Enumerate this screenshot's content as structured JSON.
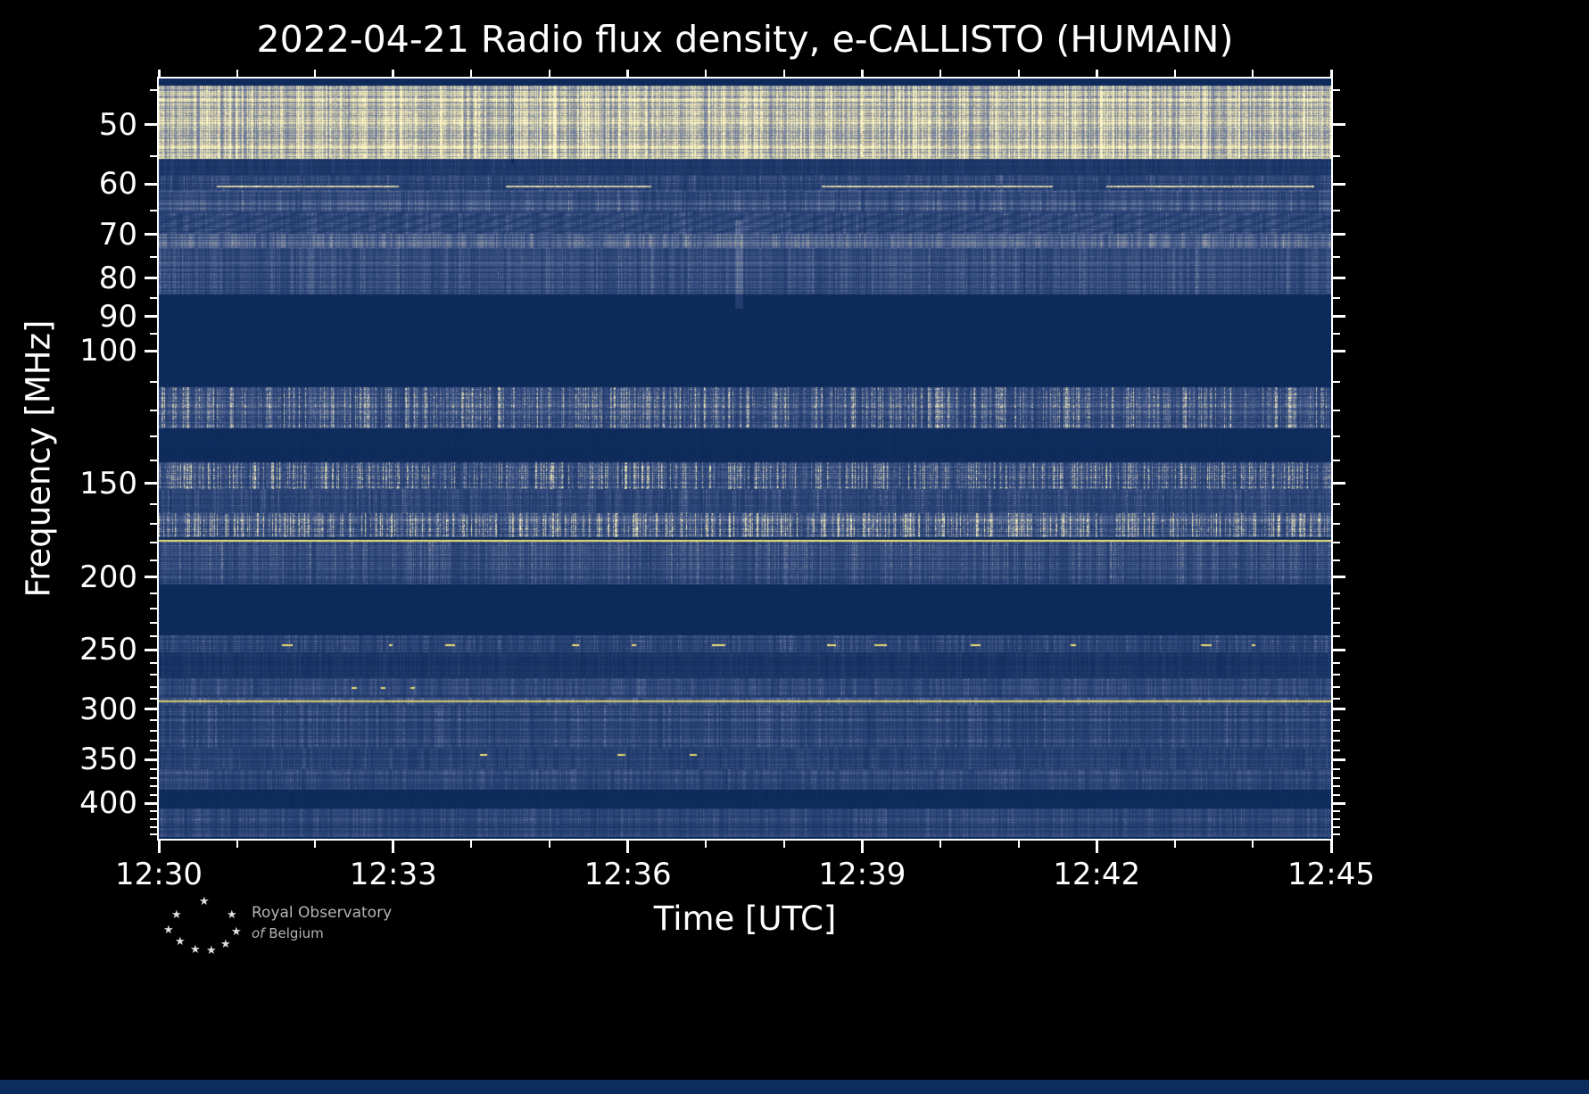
{
  "figure": {
    "title": "2022-04-21 Radio flux density, e-CALLISTO (HUMAIN)",
    "xlabel": "Time [UTC]",
    "ylabel": "Frequency [MHz]"
  },
  "logo": {
    "line1": "Royal Observatory",
    "line2_of": "of",
    "line2_rest": "Belgium",
    "star_glyph": "★"
  },
  "colors": {
    "background": "#000000",
    "axis": "#ffffff",
    "text": "#ffffff",
    "logo_text": "#b5b5b5",
    "bottom_strip": "#0c2c5e"
  },
  "chart_data": {
    "type": "heatmap",
    "subtype": "radio-spectrogram",
    "title": "2022-04-21 Radio flux density, e-CALLISTO (HUMAIN)",
    "xlabel": "Time [UTC]",
    "ylabel": "Frequency [MHz]",
    "observation": {
      "date": "2022-04-21",
      "network": "e-CALLISTO",
      "station": "HUMAIN"
    },
    "x_ticks": [
      "12:30",
      "12:33",
      "12:36",
      "12:39",
      "12:42",
      "12:45"
    ],
    "x_tick_minutes": [
      0,
      3,
      6,
      9,
      12,
      15
    ],
    "x_total_minutes": 15,
    "x_minor_step_minutes": 1,
    "y_scale": "log",
    "y_ticks": [
      50,
      60,
      70,
      80,
      90,
      100,
      150,
      200,
      250,
      300,
      350,
      400
    ],
    "y_minor_ticks": [
      45,
      55,
      65,
      75,
      85,
      95,
      110,
      120,
      130,
      140,
      160,
      170,
      180,
      190,
      210,
      220,
      230,
      240,
      260,
      270,
      280,
      290,
      310,
      320,
      330,
      340,
      360,
      370,
      380,
      390,
      410,
      420,
      430,
      440
    ],
    "freq_range_mhz": [
      43.4,
      446
    ],
    "colormap": {
      "stops": [
        {
          "v": 0,
          "color": "#0b2858"
        },
        {
          "v": 0.3,
          "color": "#2f477a"
        },
        {
          "v": 0.55,
          "color": "#64769d"
        },
        {
          "v": 0.72,
          "color": "#9699a0"
        },
        {
          "v": 0.85,
          "color": "#cfc9a0"
        },
        {
          "v": 1,
          "color": "#fdf6c5"
        }
      ],
      "accent_yellow": "#f6e24e"
    },
    "bands": [
      {
        "f": [
          44.3,
          55.5
        ],
        "base": 0.5,
        "speckle": 0.5,
        "tint": "cream"
      },
      {
        "f": [
          55.5,
          58.3
        ],
        "base": 0.12,
        "speckle": 0.1
      },
      {
        "f": [
          58.3,
          61.2
        ],
        "base": 0.22,
        "speckle": 0.15
      },
      {
        "f": [
          61.2,
          65.4
        ],
        "base": 0.3,
        "speckle": 0.15
      },
      {
        "f": [
          65.4,
          69.8
        ],
        "base": 0.27,
        "speckle": 0.12,
        "pattern": "chevron"
      },
      {
        "f": [
          69.8,
          72.9
        ],
        "base": 0.4,
        "speckle": 0.18
      },
      {
        "f": [
          72.9,
          84.1
        ],
        "base": 0.27,
        "speckle": 0.15
      },
      {
        "f": [
          84.1,
          111.8
        ],
        "base": 0.018,
        "speckle": 0.01
      },
      {
        "f": [
          111.8,
          126.7
        ],
        "base": 0.26,
        "speckle": 0.5
      },
      {
        "f": [
          126.7,
          140.7
        ],
        "base": 0.03,
        "speckle": 0.02
      },
      {
        "f": [
          140.7,
          152.7
        ],
        "base": 0.25,
        "speckle": 0.55
      },
      {
        "f": [
          152.7,
          164.4
        ],
        "base": 0.2,
        "speckle": 0.18
      },
      {
        "f": [
          164.4,
          177.0
        ],
        "base": 0.3,
        "speckle": 0.6
      },
      {
        "f": [
          179.5,
          204.6
        ],
        "base": 0.26,
        "speckle": 0.2
      },
      {
        "f": [
          204.6,
          239.0
        ],
        "base": 0.018,
        "speckle": 0.01
      },
      {
        "f": [
          239.0,
          252.0
        ],
        "base": 0.2,
        "speckle": 0.18
      },
      {
        "f": [
          252.0,
          272.6
        ],
        "base": 0.12,
        "speckle": 0.08
      },
      {
        "f": [
          272.6,
          289.6
        ],
        "base": 0.25,
        "speckle": 0.15
      },
      {
        "f": [
          289.6,
          296.0
        ],
        "base": 0.3,
        "speckle": 0.2
      },
      {
        "f": [
          296.0,
          337.6
        ],
        "base": 0.24,
        "speckle": 0.15
      },
      {
        "f": [
          337.6,
          360.5
        ],
        "base": 0.2,
        "speckle": 0.12
      },
      {
        "f": [
          360.5,
          383.8
        ],
        "base": 0.24,
        "speckle": 0.12
      },
      {
        "f": [
          383.8,
          406.0
        ],
        "base": 0.025,
        "speckle": 0.02
      },
      {
        "f": [
          406.0,
          443.8
        ],
        "base": 0.22,
        "speckle": 0.12
      }
    ],
    "features": [
      {
        "name": "carrier-60MHz",
        "freq": 60.3,
        "type": "segments",
        "brightness": 0.92,
        "thickness": 2,
        "seg_len": [
          90,
          330
        ],
        "gap": [
          60,
          260
        ]
      },
      {
        "name": "carrier-76MHz",
        "freq": 76.2,
        "type": "solid",
        "brightness": 0.45,
        "thickness": 1
      },
      {
        "name": "carrier-178MHz",
        "freq": 178.2,
        "type": "solid",
        "brightness": 1.0,
        "thickness": 2,
        "color": "yellow"
      },
      {
        "name": "rfi-245MHz",
        "freq": 245.5,
        "type": "sparse",
        "brightness": 0.95,
        "thickness": 2,
        "gap": [
          30,
          180
        ],
        "seg_len": [
          4,
          16
        ],
        "color": "yellow"
      },
      {
        "name": "rfi-280MHz",
        "freq": 280.5,
        "type": "sparse",
        "brightness": 0.9,
        "thickness": 2,
        "t_range": [
          0.15,
          0.23
        ],
        "gap": [
          6,
          30
        ],
        "seg_len": [
          5,
          12
        ],
        "color": "yellow"
      },
      {
        "name": "carrier-292MHz",
        "freq": 292.0,
        "type": "solid",
        "brightness": 0.75,
        "thickness": 2,
        "color": "yellow"
      },
      {
        "name": "rfi-344MHz",
        "freq": 344.0,
        "type": "sparse",
        "brightness": 0.9,
        "thickness": 2,
        "t_range": [
          0.2,
          0.56
        ],
        "gap": [
          60,
          160
        ],
        "seg_len": [
          5,
          14
        ],
        "color": "yellow"
      },
      {
        "name": "burst-streak",
        "type": "vstreak",
        "t": 0.495,
        "freq_range": [
          67,
          88
        ],
        "width": 9,
        "boost": 0.22
      },
      {
        "name": "dark-streak",
        "type": "vstreak",
        "t": 0.302,
        "freq_range": [
          44.3,
          56.5
        ],
        "width": 3,
        "boost": -0.35
      }
    ]
  }
}
